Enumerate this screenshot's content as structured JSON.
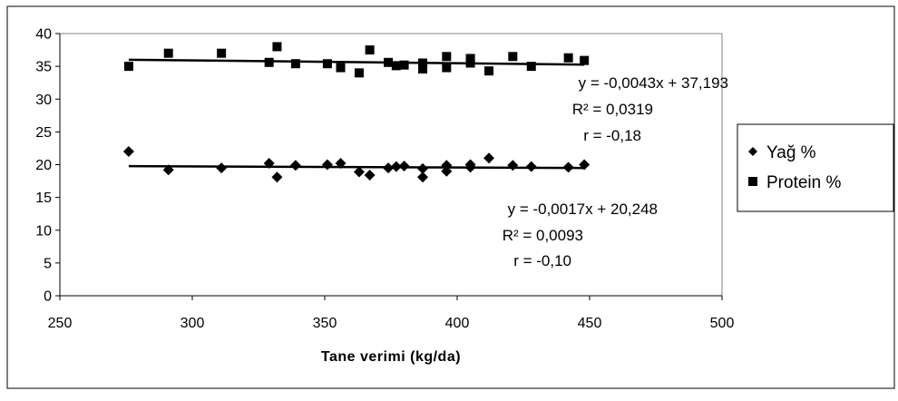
{
  "chart_data": {
    "type": "scatter",
    "xlabel": "Tane verimi (kg/da)",
    "ylabel": "",
    "xlim": [
      250,
      500
    ],
    "ylim": [
      0,
      40
    ],
    "x_ticks": [
      "250",
      "300",
      "350",
      "400",
      "450",
      "500"
    ],
    "y_ticks": [
      "0",
      "5",
      "10",
      "15",
      "20",
      "25",
      "30",
      "35",
      "40"
    ],
    "legend_position": "right",
    "series": [
      {
        "name": "Yağ %",
        "marker": "diamond",
        "color": "#000000",
        "points": [
          [
            276,
            22.0
          ],
          [
            291,
            19.2
          ],
          [
            311,
            19.5
          ],
          [
            329,
            20.2
          ],
          [
            332,
            18.1
          ],
          [
            339,
            19.9
          ],
          [
            351,
            20.0
          ],
          [
            356,
            20.2
          ],
          [
            363,
            18.9
          ],
          [
            367,
            18.4
          ],
          [
            374,
            19.5
          ],
          [
            377,
            19.7
          ],
          [
            380,
            19.8
          ],
          [
            387,
            19.4
          ],
          [
            387,
            18.1
          ],
          [
            396,
            19.0
          ],
          [
            396,
            19.9
          ],
          [
            405,
            19.6
          ],
          [
            405,
            20.0
          ],
          [
            412,
            21.0
          ],
          [
            421,
            19.9
          ],
          [
            428,
            19.7
          ],
          [
            442,
            19.6
          ],
          [
            448,
            20.0
          ]
        ],
        "trendline": {
          "slope": -0.0017,
          "intercept": 20.248,
          "x_range": [
            276,
            448
          ]
        },
        "equation": "y = -0,0017x + 20,248",
        "r2": "R² = 0,0093",
        "r": "r = -0,10"
      },
      {
        "name": "Protein %",
        "marker": "square",
        "color": "#000000",
        "points": [
          [
            276,
            35.0
          ],
          [
            291,
            37.0
          ],
          [
            311,
            37.0
          ],
          [
            329,
            35.6
          ],
          [
            332,
            38.0
          ],
          [
            339,
            35.4
          ],
          [
            351,
            35.4
          ],
          [
            356,
            34.8
          ],
          [
            363,
            34.0
          ],
          [
            367,
            37.5
          ],
          [
            374,
            35.6
          ],
          [
            377,
            35.1
          ],
          [
            380,
            35.2
          ],
          [
            387,
            34.6
          ],
          [
            387,
            35.5
          ],
          [
            396,
            34.8
          ],
          [
            396,
            36.5
          ],
          [
            405,
            35.5
          ],
          [
            405,
            36.2
          ],
          [
            412,
            34.3
          ],
          [
            421,
            36.5
          ],
          [
            428,
            35.0
          ],
          [
            442,
            36.3
          ],
          [
            448,
            35.9
          ]
        ],
        "trendline": {
          "slope": -0.0043,
          "intercept": 37.193,
          "x_range": [
            276,
            448
          ]
        },
        "equation": "y = -0,0043x + 37,193",
        "r2": "R² = 0,0319",
        "r": "r = -0,18"
      }
    ]
  }
}
